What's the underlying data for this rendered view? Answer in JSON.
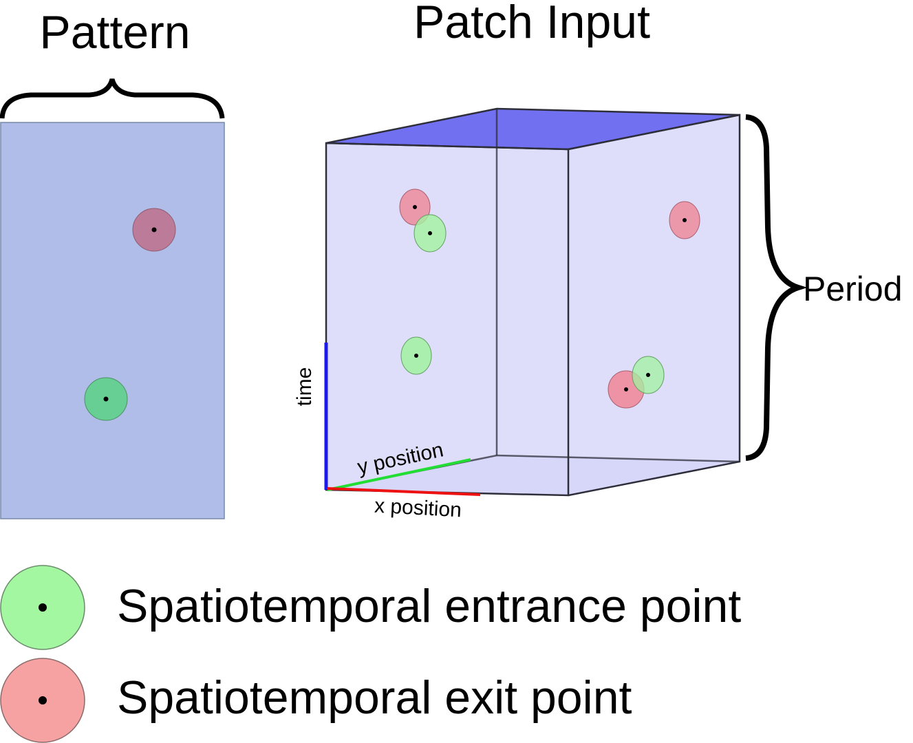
{
  "titles": {
    "pattern": "Pattern",
    "patch_input": "Patch Input"
  },
  "labels": {
    "period": "Period",
    "time_axis": "time",
    "y_axis": "y position",
    "x_axis": "x position"
  },
  "legend": {
    "entrance": "Spatiotemporal entrance point",
    "exit": "Spatiotemporal exit point"
  },
  "colors": {
    "pattern_fill": "#b0bde8",
    "cube_face": "#dcdcfa",
    "cube_end_face": "#7070f0",
    "entrance_fill": "#a2f7a0",
    "exit_fill": "#f7a2a2",
    "time_axis": "#1a1aee",
    "y_axis": "#22dd33",
    "x_axis": "#ee1111"
  }
}
